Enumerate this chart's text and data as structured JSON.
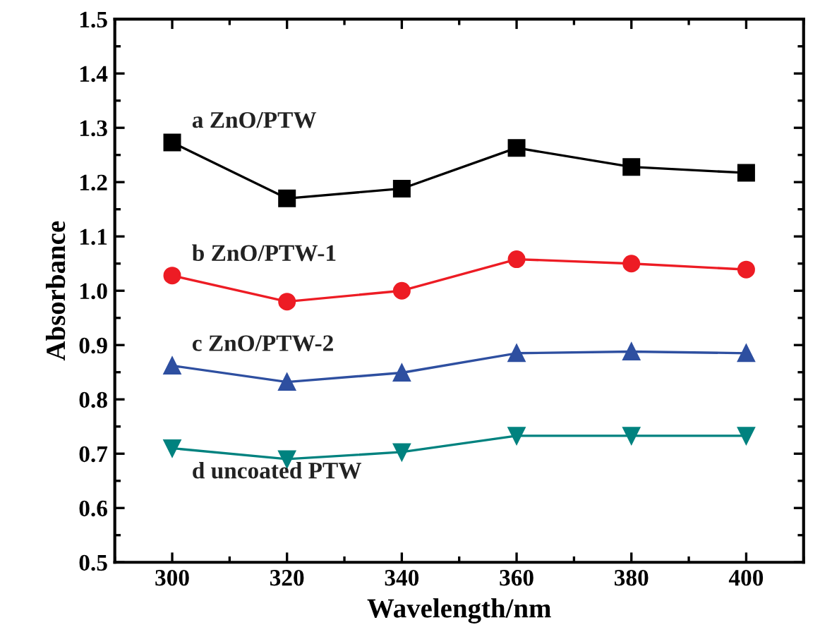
{
  "chart_data": {
    "type": "line",
    "xlabel": "Wavelength/nm",
    "ylabel": "Absorbance",
    "x": [
      300,
      320,
      340,
      360,
      380,
      400
    ],
    "series": [
      {
        "name": "a ZnO/PTW",
        "color": "#000000",
        "marker": "square",
        "values": [
          1.273,
          1.17,
          1.188,
          1.263,
          1.228,
          1.217
        ]
      },
      {
        "name": "b ZnO/PTW-1",
        "color": "#ed1c24",
        "marker": "circle",
        "values": [
          1.028,
          0.98,
          1.0,
          1.058,
          1.05,
          1.039
        ]
      },
      {
        "name": "c ZnO/PTW-2",
        "color": "#2e4fa0",
        "marker": "triangle",
        "values": [
          0.862,
          0.832,
          0.849,
          0.885,
          0.888,
          0.885
        ]
      },
      {
        "name": "d uncoated PTW",
        "color": "#00827f",
        "marker": "triangle_down",
        "values": [
          0.71,
          0.69,
          0.703,
          0.733,
          0.733,
          0.733
        ]
      }
    ],
    "xlim": [
      290,
      410
    ],
    "ylim": [
      0.5,
      1.5
    ],
    "xticks": [
      300,
      320,
      340,
      360,
      380,
      400
    ],
    "yticks": [
      {
        "value": 0.5,
        "label": "0.5"
      },
      {
        "value": 0.6,
        "label": "0.6"
      },
      {
        "value": 0.7,
        "label": "0.7"
      },
      {
        "value": 0.8,
        "label": "0.8"
      },
      {
        "value": 0.9,
        "label": "0.9"
      },
      {
        "value": 1.0,
        "label": "1.0"
      },
      {
        "value": 1.1,
        "label": "1.1"
      },
      {
        "value": 1.2,
        "label": "1.2"
      },
      {
        "value": 1.3,
        "label": "1.3"
      },
      {
        "value": 1.4,
        "label": "1.4"
      },
      {
        "value": 1.5,
        "label": "1.5"
      }
    ],
    "grid": false,
    "legend": false,
    "line_style": "solid"
  }
}
